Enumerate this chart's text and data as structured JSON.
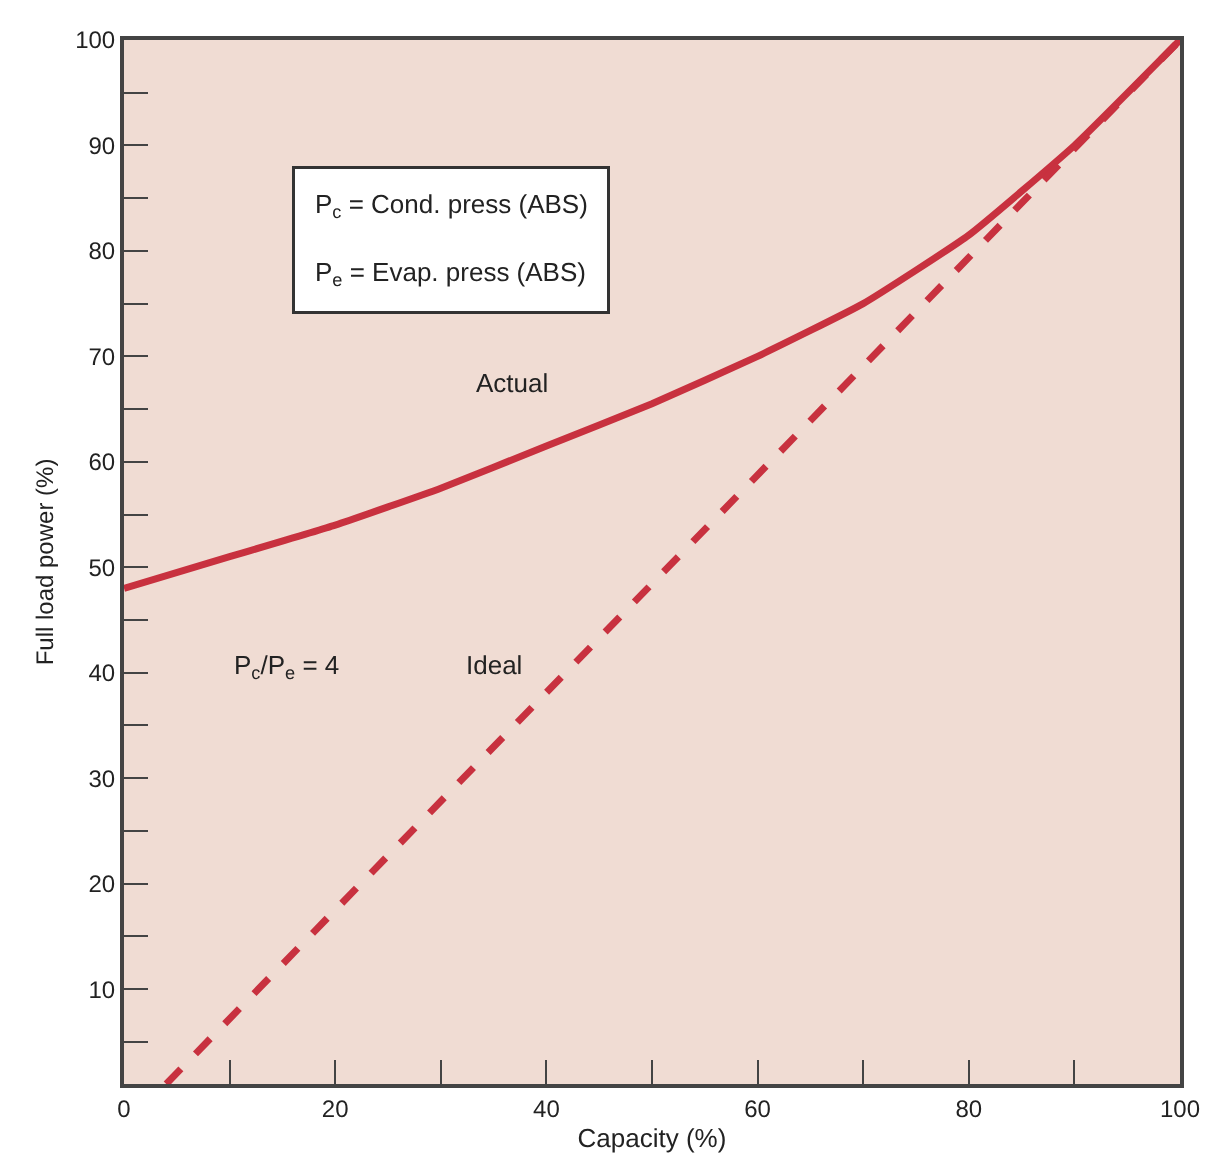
{
  "chart_data": {
    "type": "line",
    "xlabel": "Capacity (%)",
    "ylabel": "Full load power (%)",
    "x": [
      0,
      10,
      20,
      30,
      40,
      50,
      60,
      70,
      80,
      90,
      100
    ],
    "series": [
      {
        "color": "#c8313f",
        "values": [
          48,
          51,
          54,
          57.5,
          61.5,
          65.5,
          70,
          75,
          81.5,
          90,
          100
        ],
        "line_style": "solid"
      },
      {
        "color": "#c8313f",
        "x": [
          4,
          100
        ],
        "values": [
          1,
          100
        ],
        "line_style": "dashed"
      }
    ],
    "xlim": [
      0,
      100
    ],
    "ylim": [
      1,
      100
    ],
    "xticks": [
      0,
      {
        "value": 10,
        "label": null
      },
      20,
      {
        "value": 30,
        "label": null
      },
      40,
      {
        "value": 50,
        "label": null
      },
      60,
      {
        "value": 70,
        "label": null
      },
      80,
      {
        "value": 90,
        "label": null
      },
      100
    ],
    "yticks": [
      {
        "value": 5,
        "label": null
      },
      10,
      {
        "value": 15,
        "label": null
      },
      20,
      {
        "value": 25,
        "label": null
      },
      30,
      {
        "value": 35,
        "label": null
      },
      40,
      {
        "value": 45,
        "label": null
      },
      50,
      {
        "value": 55,
        "label": null
      },
      60,
      {
        "value": 65,
        "label": null
      },
      70,
      {
        "value": 75,
        "label": null
      },
      80,
      {
        "value": 85,
        "label": null
      },
      90,
      {
        "value": 95,
        "label": null
      },
      100
    ],
    "annotations": [
      "P$_{c}$ = Cond. press (ABS)\nP$_{e}$ = Evap. press (ABS)",
      "P$_{c}$/P$_{e}$ = 4",
      "Actual",
      "Ideal"
    ],
    "grid": false,
    "legend": false,
    "marker": "none"
  }
}
